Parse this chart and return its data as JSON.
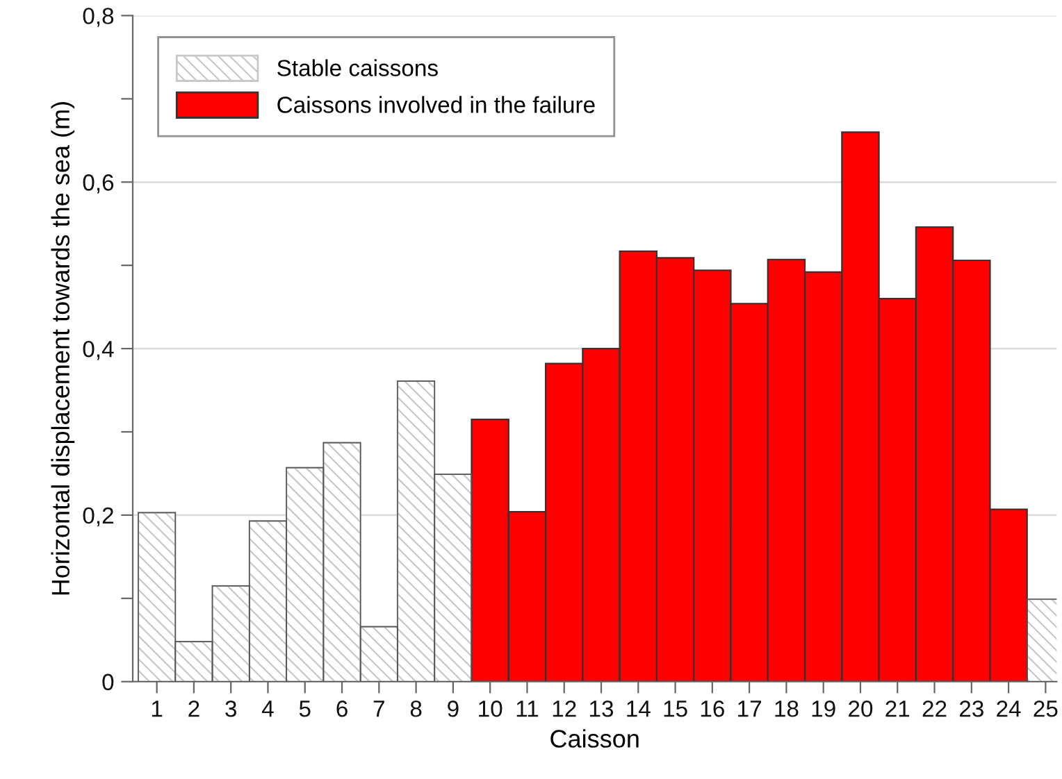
{
  "chart_data": {
    "type": "bar",
    "xlabel": "Caisson",
    "ylabel": "Horizontal displacement towards the sea (m)",
    "categories": [
      "1",
      "2",
      "3",
      "4",
      "5",
      "6",
      "7",
      "8",
      "9",
      "10",
      "11",
      "12",
      "13",
      "14",
      "15",
      "16",
      "17",
      "18",
      "19",
      "20",
      "21",
      "22",
      "23",
      "24",
      "25"
    ],
    "series": [
      {
        "name": "Stable caissons",
        "color": "#c8c8c8",
        "values": [
          0.203,
          0.048,
          0.115,
          0.193,
          0.257,
          0.287,
          0.066,
          0.361,
          0.249,
          null,
          null,
          null,
          null,
          null,
          null,
          null,
          null,
          null,
          null,
          null,
          null,
          null,
          null,
          null,
          0.099
        ]
      },
      {
        "name": "Caissons involved in the failure",
        "color": "#ff0000",
        "values": [
          null,
          null,
          null,
          null,
          null,
          null,
          null,
          null,
          null,
          0.315,
          0.204,
          0.382,
          0.4,
          0.517,
          0.509,
          0.494,
          0.454,
          0.507,
          0.492,
          0.66,
          0.46,
          0.546,
          0.506,
          0.207,
          null
        ]
      }
    ],
    "ylim": [
      0,
      0.8
    ],
    "yticks": [
      0,
      {
        "value": 0.1,
        "label": null
      },
      {
        "value": 0.2,
        "label": "0,2"
      },
      {
        "value": 0.3,
        "label": null
      },
      {
        "value": 0.4,
        "label": "0,4"
      },
      {
        "value": 0.5,
        "label": null
      },
      {
        "value": 0.6,
        "label": "0,6"
      },
      {
        "value": 0.7,
        "label": null
      },
      {
        "value": 0.8,
        "label": "0,8"
      }
    ],
    "grid": "y",
    "legend": "top left"
  }
}
